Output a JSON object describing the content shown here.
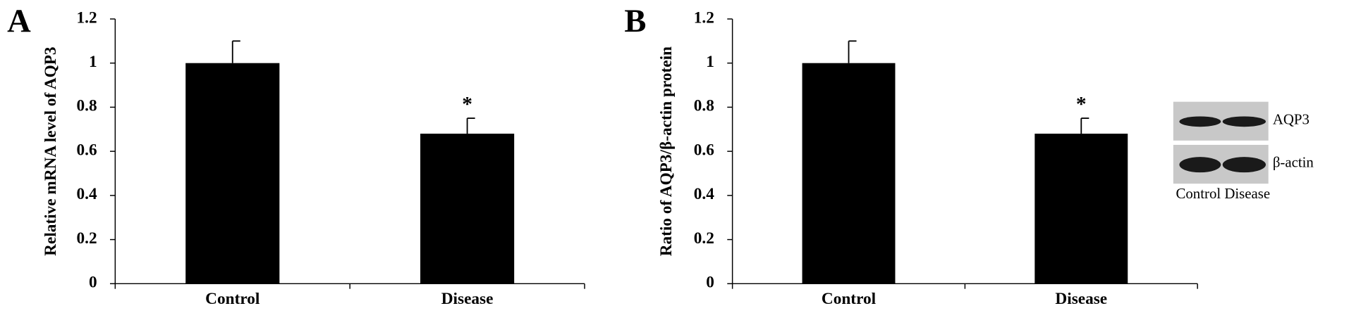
{
  "chart_data": [
    {
      "type": "bar",
      "panel_label": "A",
      "ylabel": "Relative mRNA level of AQP3",
      "categories": [
        "Control",
        "Disease"
      ],
      "values": [
        1,
        0.68
      ],
      "errors": [
        0.1,
        0.07
      ],
      "annotations": [
        null,
        "*"
      ],
      "color": "#000000",
      "ylim": [
        0,
        1.2
      ],
      "yticks": [
        0,
        0.2,
        0.4,
        0.6,
        0.8,
        1,
        1.2
      ]
    },
    {
      "type": "bar",
      "panel_label": "B",
      "ylabel": "Ratio of AQP3/β-actin protein",
      "categories": [
        "Control",
        "Disease"
      ],
      "values": [
        1,
        0.68
      ],
      "errors": [
        0.1,
        0.07
      ],
      "annotations": [
        null,
        "*"
      ],
      "color": "#000000",
      "ylim": [
        0,
        1.2
      ],
      "yticks": [
        0,
        0.2,
        0.4,
        0.6,
        0.8,
        1,
        1.2
      ],
      "inset": {
        "rows": [
          "AQP3",
          "β-actin"
        ],
        "columns": "Control Disease"
      }
    }
  ]
}
